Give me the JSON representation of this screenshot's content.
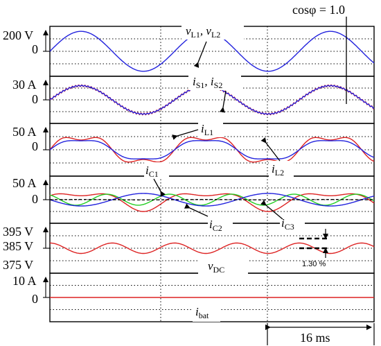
{
  "chart_data": [
    {
      "type": "line",
      "panel": "vL",
      "ticks": [
        "200 V",
        "0"
      ],
      "signal_labels": [
        {
          "main": "v",
          "sub": "L1"
        },
        {
          "main": ", v",
          "sub": "L2"
        }
      ],
      "annotation": "cosφ = 1.0",
      "ylim": [
        -250,
        250
      ],
      "series": [
        {
          "id": "vL1",
          "color": "#2222dd",
          "amplitude": 200,
          "cycles": 2.6,
          "phase_deg": 0
        }
      ]
    },
    {
      "type": "line",
      "panel": "iS",
      "ticks": [
        "30 A",
        "0"
      ],
      "signal_labels": [
        {
          "main": "i",
          "sub": "S1"
        },
        {
          "main": ", i",
          "sub": "S2"
        }
      ],
      "ylim": [
        -40,
        40
      ],
      "series": [
        {
          "id": "iS2",
          "color": "#dd2222",
          "amplitude": 24,
          "cycles": 2.6,
          "phase_deg": 0,
          "ripple": 1.6
        },
        {
          "id": "iS1",
          "color": "#2222dd",
          "amplitude": 24,
          "cycles": 2.6,
          "phase_deg": 0,
          "ripple": 0.8
        }
      ]
    },
    {
      "type": "line",
      "panel": "iL",
      "ticks": [
        "50 A",
        "0"
      ],
      "signal_labels": [
        {
          "main": "i",
          "sub": "L1"
        },
        {
          "main": "i",
          "sub": "L2"
        }
      ],
      "ylim": [
        -70,
        70
      ],
      "series": [
        {
          "id": "iL1",
          "color": "#dd2222",
          "amplitude": 36,
          "cycles": 2.6,
          "phase_deg": 0,
          "h3": 10
        },
        {
          "id": "iL2",
          "color": "#2222dd",
          "amplitude": 28,
          "cycles": 2.6,
          "phase_deg": 0,
          "h3": 4
        }
      ]
    },
    {
      "type": "line",
      "panel": "iC",
      "ticks": [
        "50 A",
        "0"
      ],
      "signal_labels": [
        {
          "main": "i",
          "sub": "C1"
        },
        {
          "main": "i",
          "sub": "C2"
        },
        {
          "main": "i",
          "sub": "C3"
        }
      ],
      "ylim": [
        -60,
        60
      ],
      "series": [
        {
          "id": "iC1",
          "color": "#dd2222",
          "amplitude": 20,
          "cycles": 2.6,
          "phase_deg": 0,
          "h2": 10
        },
        {
          "id": "iC3",
          "color": "#22cc22",
          "amplitude": 14,
          "cycles": 5.2,
          "phase_deg": 120
        },
        {
          "id": "iC2",
          "color": "#2222dd",
          "amplitude": 16,
          "cycles": 2.6,
          "phase_deg": 180
        },
        {
          "id": "iC0",
          "color": "#000000",
          "amplitude": 0.5,
          "cycles": 2.6,
          "phase_deg": 0,
          "dashed": true
        }
      ]
    },
    {
      "type": "line",
      "panel": "vDC",
      "ticks": [
        "395 V",
        "385 V",
        "375 V"
      ],
      "signal_labels": [
        {
          "main": "v",
          "sub": "DC"
        }
      ],
      "annotation": "1.30 %",
      "ylim": [
        373,
        397
      ],
      "series": [
        {
          "id": "vDC",
          "color": "#dd2222",
          "offset": 385,
          "amplitude": 2.5,
          "cycles": 5.2,
          "phase_deg": 90
        }
      ]
    },
    {
      "type": "line",
      "panel": "ibat",
      "ticks": [
        "10 A",
        "0"
      ],
      "signal_labels": [
        {
          "main": "i",
          "sub": "bat"
        }
      ],
      "ylim": [
        -12,
        12
      ],
      "series": [
        {
          "id": "ibat",
          "color": "#dd2222",
          "offset": 0,
          "amplitude": 0,
          "cycles": 1,
          "phase_deg": 0
        }
      ]
    }
  ],
  "time_scale": "16 ms"
}
